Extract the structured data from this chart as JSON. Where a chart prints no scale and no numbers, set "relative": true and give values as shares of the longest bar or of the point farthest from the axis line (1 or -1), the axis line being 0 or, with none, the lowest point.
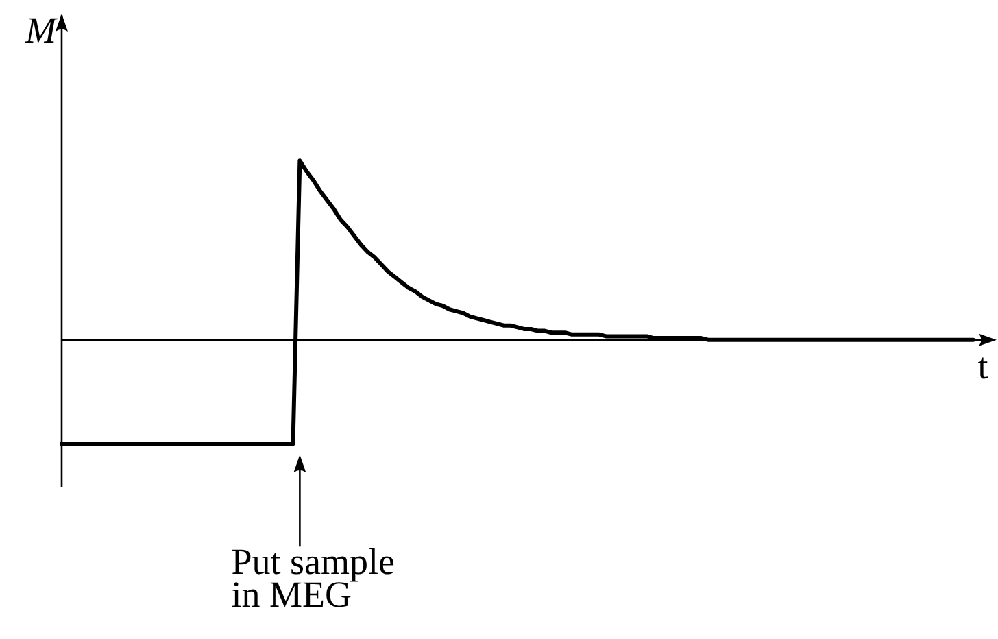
{
  "chart_data": {
    "type": "line",
    "relative": true,
    "xlabel": "t",
    "ylabel": "M",
    "color": "#000000",
    "categories": [
      null,
      null,
      null,
      null,
      null,
      null,
      null,
      null,
      null,
      null,
      null,
      null,
      null,
      null,
      null,
      null,
      null,
      null,
      null,
      null,
      null,
      null,
      null,
      null,
      null,
      null,
      null,
      null,
      null,
      null,
      null,
      null,
      null,
      null,
      null,
      null,
      null,
      null,
      null,
      null,
      null,
      null,
      null,
      null,
      null,
      null,
      null,
      null,
      null,
      null,
      null,
      null,
      null,
      null,
      null,
      null,
      null,
      null,
      null,
      null,
      null,
      null,
      null,
      null,
      null,
      null,
      null,
      null,
      null,
      null,
      null,
      null,
      null,
      null,
      null,
      null,
      null,
      null,
      null,
      null,
      null,
      null,
      null,
      null,
      null,
      null,
      null,
      null,
      null,
      null,
      null,
      null,
      null,
      null,
      null,
      null,
      null,
      null,
      null,
      null,
      null,
      null,
      null,
      null,
      null,
      null,
      null,
      null,
      null,
      null,
      null,
      null,
      null,
      null,
      null,
      null,
      null,
      null,
      null,
      null,
      null,
      null,
      null,
      null,
      null,
      null,
      null,
      null,
      null,
      null,
      null,
      null,
      null,
      null,
      null
    ],
    "values": [
      -0.58,
      -0.58,
      -0.58,
      -0.58,
      -0.58,
      -0.58,
      -0.58,
      -0.58,
      -0.58,
      -0.58,
      -0.58,
      -0.58,
      -0.58,
      -0.58,
      -0.58,
      -0.58,
      -0.58,
      -0.58,
      -0.58,
      -0.58,
      -0.58,
      -0.58,
      -0.58,
      -0.58,
      -0.58,
      -0.58,
      -0.58,
      -0.58,
      -0.58,
      -0.58,
      -0.58,
      -0.58,
      -0.58,
      -0.58,
      -0.58,
      1,
      0.94,
      0.89,
      0.83,
      0.78,
      0.73,
      0.67,
      0.63,
      0.58,
      0.53,
      0.49,
      0.46,
      0.42,
      0.38,
      0.35,
      0.32,
      0.29,
      0.27,
      0.24,
      0.22,
      0.2,
      0.19,
      0.17,
      0.16,
      0.15,
      0.13,
      0.12,
      0.11,
      0.1,
      0.09,
      0.08,
      0.08,
      0.07,
      0.06,
      0.06,
      0.05,
      0.05,
      0.04,
      0.04,
      0.04,
      0.03,
      0.03,
      0.03,
      0.03,
      0.03,
      0.02,
      0.02,
      0.02,
      0.02,
      0.02,
      0.02,
      0.02,
      0.01,
      0.01,
      0.01,
      0.01,
      0.01,
      0.01,
      0.01,
      0.01,
      0,
      0,
      0,
      0,
      0,
      0,
      0,
      0,
      0,
      0,
      0,
      0,
      0,
      0,
      0,
      0,
      0,
      0,
      0,
      0,
      0,
      0,
      0,
      0,
      0,
      0,
      0,
      0,
      0,
      0,
      0,
      0,
      0,
      0,
      0,
      0,
      0,
      0,
      0,
      0
    ],
    "annotations": [
      "Put sample\nin MEG"
    ]
  }
}
